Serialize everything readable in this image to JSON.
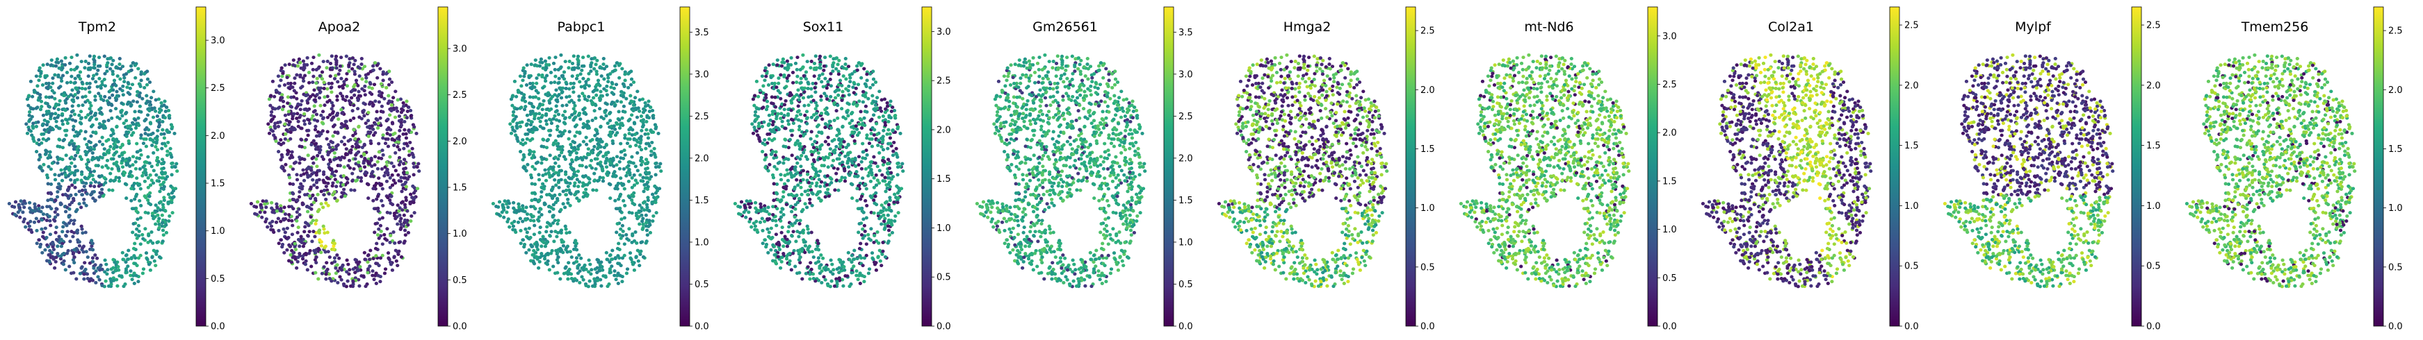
{
  "chart_data": [
    {
      "type": "scatter",
      "title": "Tpm2",
      "colorbar": {
        "cmap": "viridis",
        "range": [
          0,
          3.35
        ],
        "ticks": [
          "0.0",
          "0.5",
          "1.0",
          "1.5",
          "2.0",
          "2.5",
          "3.0"
        ]
      },
      "pattern": "upper-high-lower-low"
    },
    {
      "type": "scatter",
      "title": "Apoa2",
      "colorbar": {
        "cmap": "viridis",
        "range": [
          0,
          3.45
        ],
        "ticks": [
          "0.0",
          "0.5",
          "1.0",
          "1.5",
          "2.0",
          "2.5",
          "3.0"
        ]
      },
      "pattern": "mostly-low-hotspot-center"
    },
    {
      "type": "scatter",
      "title": "Pabpc1",
      "colorbar": {
        "cmap": "viridis",
        "range": [
          0,
          3.8
        ],
        "ticks": [
          "0.0",
          "0.5",
          "1.0",
          "1.5",
          "2.0",
          "2.5",
          "3.0",
          "3.5"
        ]
      },
      "pattern": "uniform-mid"
    },
    {
      "type": "scatter",
      "title": "Sox11",
      "colorbar": {
        "cmap": "viridis",
        "range": [
          0,
          3.25
        ],
        "ticks": [
          "0.0",
          "0.5",
          "1.0",
          "1.5",
          "2.0",
          "2.5",
          "3.0"
        ]
      },
      "pattern": "mid-with-low-patches"
    },
    {
      "type": "scatter",
      "title": "Gm26561",
      "colorbar": {
        "cmap": "viridis",
        "range": [
          0,
          3.8
        ],
        "ticks": [
          "0.0",
          "0.5",
          "1.0",
          "1.5",
          "2.0",
          "2.5",
          "3.0",
          "3.5"
        ]
      },
      "pattern": "uniform-mid-high"
    },
    {
      "type": "scatter",
      "title": "Hmga2",
      "colorbar": {
        "cmap": "viridis",
        "range": [
          0,
          2.7
        ],
        "ticks": [
          "0.0",
          "0.5",
          "1.0",
          "1.5",
          "2.0",
          "2.5"
        ]
      },
      "pattern": "mixed-low-high-bottom"
    },
    {
      "type": "scatter",
      "title": "mt-Nd6",
      "colorbar": {
        "cmap": "viridis",
        "range": [
          0,
          3.3
        ],
        "ticks": [
          "0.0",
          "0.5",
          "1.0",
          "1.5",
          "2.0",
          "2.5",
          "3.0"
        ]
      },
      "pattern": "mostly-high"
    },
    {
      "type": "scatter",
      "title": "Col2a1",
      "colorbar": {
        "cmap": "viridis",
        "range": [
          0,
          2.65
        ],
        "ticks": [
          "0.0",
          "0.5",
          "1.0",
          "1.5",
          "2.0",
          "2.5"
        ]
      },
      "pattern": "low-with-bright-band"
    },
    {
      "type": "scatter",
      "title": "Mylpf",
      "colorbar": {
        "cmap": "viridis",
        "range": [
          0,
          2.65
        ],
        "ticks": [
          "0.0",
          "0.5",
          "1.0",
          "1.5",
          "2.0",
          "2.5"
        ]
      },
      "pattern": "low-top-high-bottom"
    },
    {
      "type": "scatter",
      "title": "Tmem256",
      "colorbar": {
        "cmap": "viridis",
        "range": [
          0,
          2.7
        ],
        "ticks": [
          "0.0",
          "0.5",
          "1.0",
          "1.5",
          "2.0",
          "2.5"
        ]
      },
      "pattern": "mostly-high"
    }
  ]
}
